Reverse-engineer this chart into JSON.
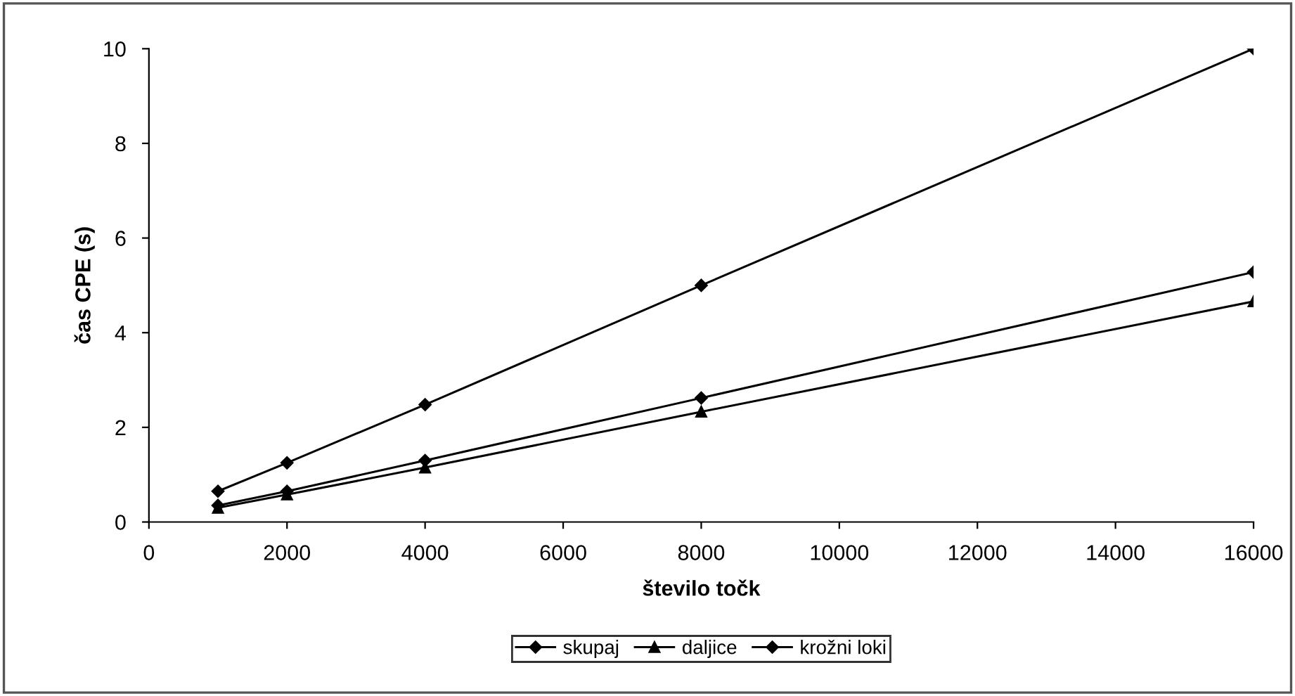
{
  "chart_data": {
    "type": "line",
    "xlabel": "število točk",
    "ylabel": "čas CPE (s)",
    "x": [
      1000,
      2000,
      4000,
      8000,
      16000
    ],
    "series": [
      {
        "name": "skupaj",
        "color": "#000000",
        "marker": "diamond",
        "values": [
          0.65,
          1.25,
          2.48,
          5.0,
          10.0
        ]
      },
      {
        "name": "daljice",
        "color": "#000000",
        "marker": "triangle",
        "values": [
          0.3,
          0.58,
          1.15,
          2.33,
          4.66
        ]
      },
      {
        "name": "krožni loki",
        "color": "#000000",
        "marker": "diamond",
        "values": [
          0.35,
          0.65,
          1.3,
          2.62,
          5.28
        ]
      }
    ],
    "xlim": [
      0,
      16000
    ],
    "xticks": [
      0,
      2000,
      4000,
      6000,
      8000,
      10000,
      12000,
      14000,
      16000
    ],
    "ylim": [
      0,
      10
    ],
    "yticks": [
      0,
      2,
      4,
      6,
      8,
      10
    ],
    "grid": false,
    "legend": "bottom",
    "line_style": "solid"
  }
}
